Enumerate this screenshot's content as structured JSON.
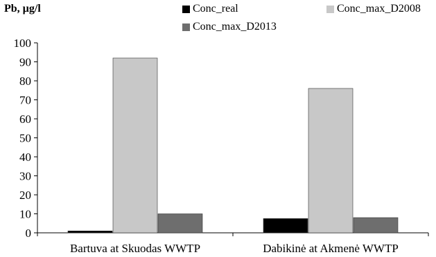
{
  "chart_data": {
    "type": "bar",
    "ylabel": "Pb, µg/l",
    "xlabel": "",
    "title": "",
    "categories": [
      "Bartuva at Skuodas WWTP",
      "Dabikinė at Akmenė WWTP"
    ],
    "series": [
      {
        "name": "Conc_real",
        "values": [
          1,
          7.5
        ],
        "color": "#000000"
      },
      {
        "name": "Conc_max_D2008",
        "values": [
          92,
          76
        ],
        "color": "#c8c8c8"
      },
      {
        "name": "Conc_max_D2013",
        "values": [
          10,
          8
        ],
        "color": "#6e6e6e"
      }
    ],
    "ylim": [
      0,
      100
    ],
    "yticks": [
      0,
      10,
      20,
      30,
      40,
      50,
      60,
      70,
      80,
      90,
      100
    ],
    "grid": false,
    "legend_position": "top-right"
  }
}
